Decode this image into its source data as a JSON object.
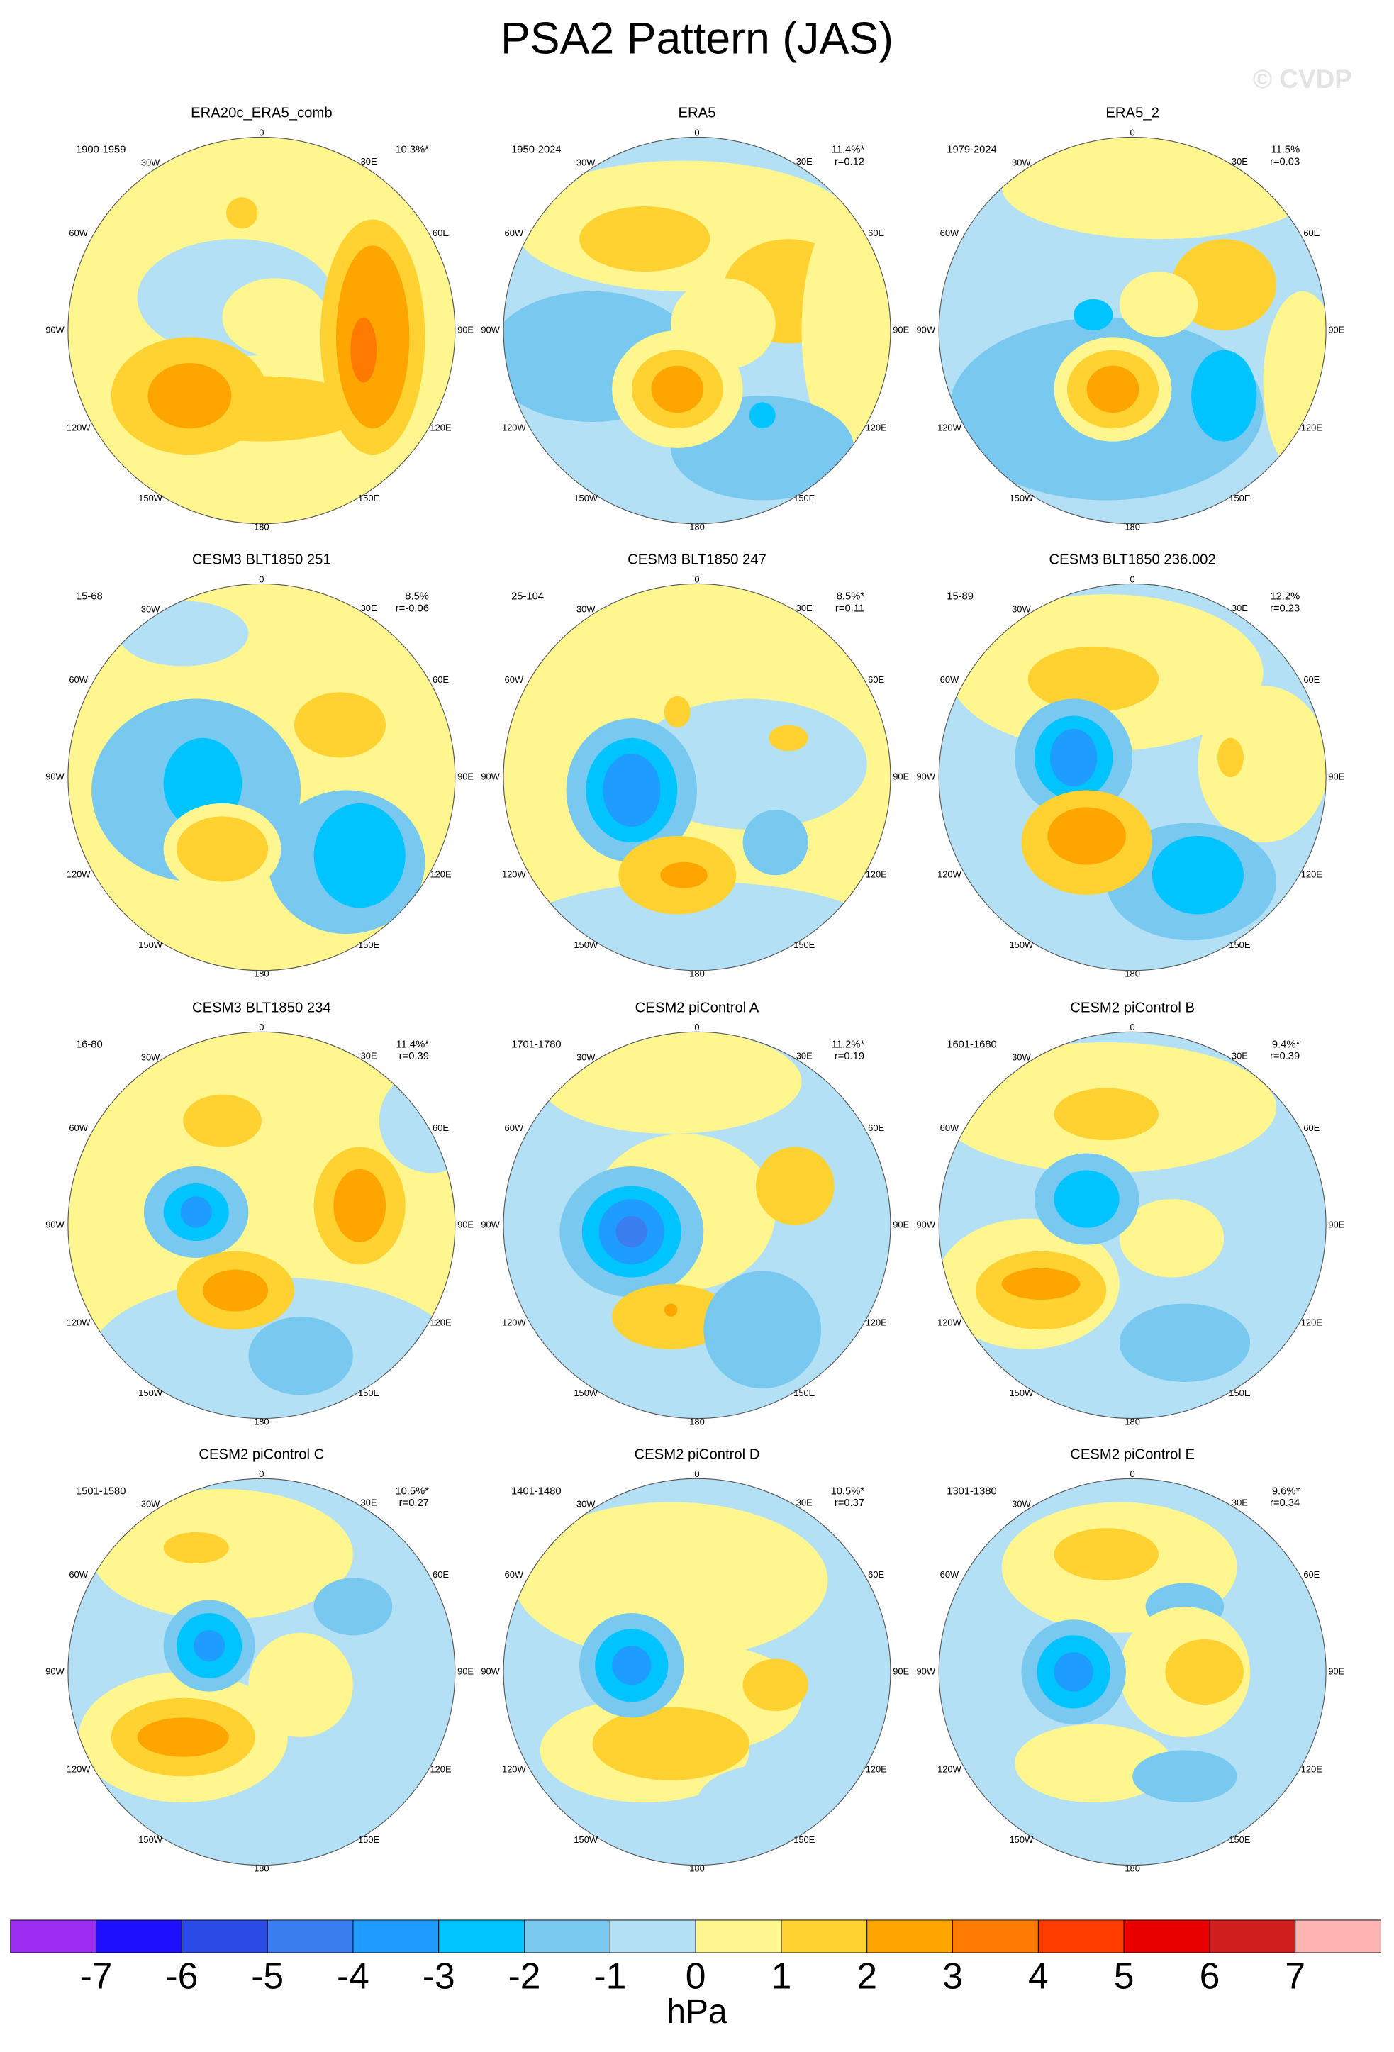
{
  "title": "PSA2 Pattern (JAS)",
  "watermark": "© CVDP",
  "lon_labels": [
    "0",
    "30E",
    "60E",
    "90E",
    "120E",
    "150E",
    "180",
    "150W",
    "120W",
    "90W",
    "60W",
    "30W"
  ],
  "panels": [
    {
      "title": "ERA20c_ERA5_comb",
      "period": "1900-1959",
      "pct": "10.3%*"
    },
    {
      "title": "ERA5",
      "period": "1950-2024",
      "pct": "11.4%*",
      "r": "r=0.12"
    },
    {
      "title": "ERA5_2",
      "period": "1979-2024",
      "pct": "11.5%",
      "r": "r=0.03"
    },
    {
      "title": "CESM3 BLT1850 251",
      "period": "15-68",
      "pct": "8.5%",
      "r": "r=-0.06"
    },
    {
      "title": "CESM3 BLT1850 247",
      "period": "25-104",
      "pct": "8.5%*",
      "r": "r=0.11"
    },
    {
      "title": "CESM3 BLT1850 236.002",
      "period": "15-89",
      "pct": "12.2%",
      "r": "r=0.23"
    },
    {
      "title": "CESM3 BLT1850 234",
      "period": "16-80",
      "pct": "11.4%*",
      "r": "r=0.39"
    },
    {
      "title": "CESM2 piControl A",
      "period": "1701-1780",
      "pct": "11.2%*",
      "r": "r=0.19"
    },
    {
      "title": "CESM2 piControl B",
      "period": "1601-1680",
      "pct": "9.4%*",
      "r": "r=0.39"
    },
    {
      "title": "CESM2 piControl C",
      "period": "1501-1580",
      "pct": "10.5%*",
      "r": "r=0.27"
    },
    {
      "title": "CESM2 piControl D",
      "period": "1401-1480",
      "pct": "10.5%*",
      "r": "r=0.37"
    },
    {
      "title": "CESM2 piControl E",
      "period": "1301-1380",
      "pct": "9.6%*",
      "r": "r=0.34"
    }
  ],
  "colorbar": {
    "colors": [
      "#9b2cf0",
      "#1e10ff",
      "#2a4ae6",
      "#3a7ef0",
      "#1e9cff",
      "#00c4ff",
      "#78c8f0",
      "#b4e0f5",
      "#fff68f",
      "#ffd232",
      "#ffa500",
      "#ff7a00",
      "#ff3c00",
      "#e80000",
      "#d01e1e",
      "#ffb4b4"
    ],
    "ticks": [
      -7,
      -6,
      -5,
      -4,
      -3,
      -2,
      -1,
      0,
      1,
      2,
      3,
      4,
      5,
      6,
      7
    ],
    "unit": "hPa"
  }
}
